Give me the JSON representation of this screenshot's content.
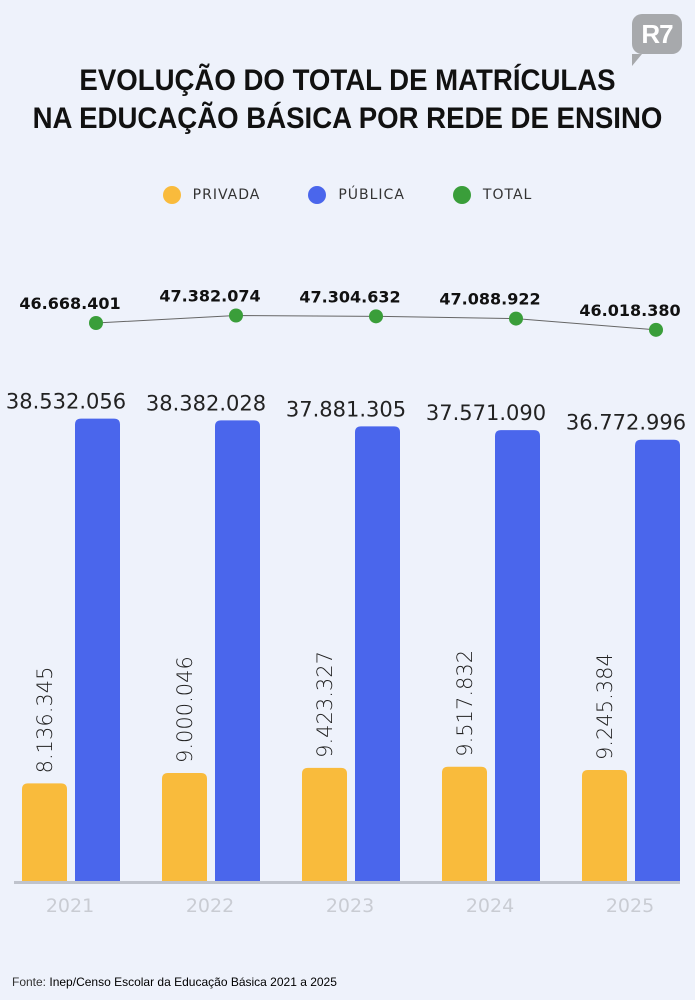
{
  "logo": "R7",
  "title_lines": [
    "EVOLUÇÃO DO TOTAL DE MATRÍCULAS",
    "NA EDUCAÇÃO BÁSICA POR REDE DE ENSINO"
  ],
  "source_label": "Fonte:",
  "source_text": "Inep/Censo Escolar da Educação Básica 2021 a 2025",
  "colors": {
    "privada": "#f9bb3c",
    "publica": "#4a66ec",
    "total": "#3a9e3a",
    "background": "#eef2fb"
  },
  "chart_data": {
    "type": "bar",
    "title": "EVOLUÇÃO DO TOTAL DE MATRÍCULAS NA EDUCAÇÃO BÁSICA POR REDE DE ENSINO",
    "categories": [
      "2021",
      "2022",
      "2023",
      "2024",
      "2025"
    ],
    "legend_position": "top",
    "grid": false,
    "series": [
      {
        "name": "PRIVADA",
        "type": "bar",
        "values": [
          8136345,
          9000046,
          9423327,
          9517832,
          9245384
        ],
        "labels": [
          "8.136.345",
          "9.000.046",
          "9.423.327",
          "9.517.832",
          "9.245.384"
        ]
      },
      {
        "name": "PÚBLICA",
        "type": "bar",
        "values": [
          38532056,
          38382028,
          37881305,
          37571090,
          36772996
        ],
        "labels": [
          "38.532.056",
          "38.382.028",
          "37.881.305",
          "37.571.090",
          "36.772.996"
        ]
      },
      {
        "name": "TOTAL",
        "type": "line",
        "values": [
          46668401,
          47382074,
          47304632,
          47088922,
          46018380
        ],
        "labels": [
          "46.668.401",
          "47.382.074",
          "47.304.632",
          "47.088.922",
          "46.018.380"
        ]
      }
    ]
  }
}
